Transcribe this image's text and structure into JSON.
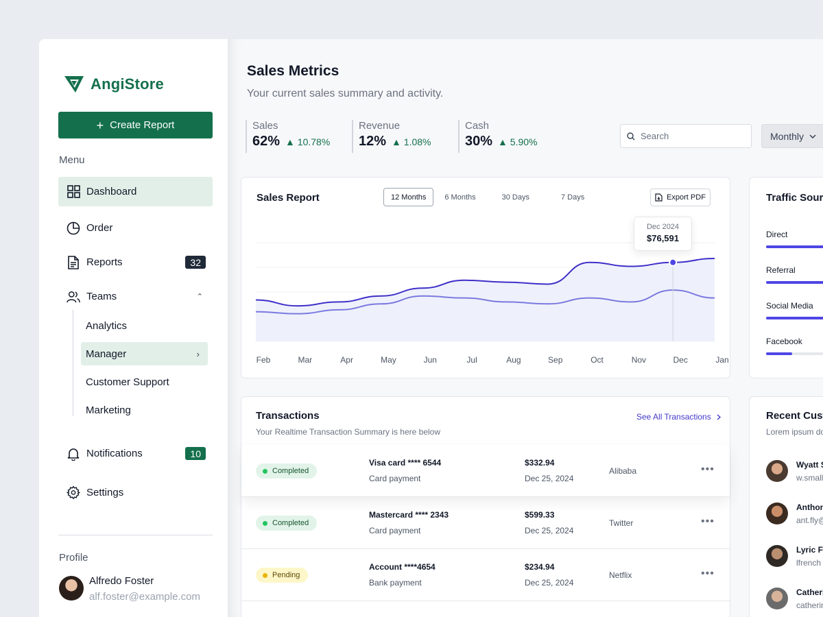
{
  "brand": {
    "name": "AngiStore",
    "color": "#14704c"
  },
  "sidebar": {
    "create_button": "Create Report",
    "menu_label": "Menu",
    "items": [
      {
        "label": "Dashboard",
        "icon": "grid-icon"
      },
      {
        "label": "Order",
        "icon": "pie-chart-icon"
      },
      {
        "label": "Reports",
        "icon": "document-icon",
        "badge": "32"
      },
      {
        "label": "Teams",
        "icon": "users-icon"
      },
      {
        "label": "Notifications",
        "icon": "bell-icon",
        "badge": "10"
      },
      {
        "label": "Settings",
        "icon": "gear-icon"
      }
    ],
    "teams_sub": [
      "Analytics",
      "Manager",
      "Customer Support",
      "Marketing"
    ],
    "profile_label": "Profile",
    "profile": {
      "name": "Alfredo Foster",
      "email": "alf.foster@example.com"
    }
  },
  "header": {
    "title": "Sales Metrics",
    "subtitle": "Your current sales summary and activity."
  },
  "metrics": [
    {
      "label": "Sales",
      "value": "62%",
      "change": "10.78%"
    },
    {
      "label": "Revenue",
      "value": "12%",
      "change": "1.08%"
    },
    {
      "label": "Cash",
      "value": "30%",
      "change": "5.90%"
    }
  ],
  "search": {
    "placeholder": "Search"
  },
  "period_select": {
    "value": "Monthly"
  },
  "sales_report": {
    "title": "Sales Report",
    "tabs": [
      "12 Months",
      "6 Months",
      "30 Days",
      "7 Days"
    ],
    "active_tab": "12 Months",
    "export_label": "Export PDF",
    "tooltip": {
      "date": "Dec 2024",
      "value": "$76,591"
    }
  },
  "chart_data": {
    "type": "line",
    "categories": [
      "Feb",
      "Mar",
      "Apr",
      "May",
      "Jun",
      "Jul",
      "Aug",
      "Sep",
      "Oct",
      "Nov",
      "Dec",
      "Jan"
    ],
    "series": [
      {
        "values": [
          42,
          36,
          40,
          46,
          54,
          62,
          60,
          58,
          80,
          76,
          80,
          84
        ]
      },
      {
        "values": [
          30,
          28,
          32,
          38,
          46,
          44,
          40,
          38,
          44,
          40,
          52,
          44
        ]
      }
    ],
    "highlight": {
      "category": "Dec",
      "value": 76591
    },
    "colors": {
      "primary": "#3f2fc9",
      "secondary": "#7b79e0",
      "area": "#eef1fb"
    }
  },
  "traffic": {
    "title": "Traffic Source",
    "items": [
      {
        "label": "Direct",
        "fraction": 1.0
      },
      {
        "label": "Referral",
        "fraction": 1.0
      },
      {
        "label": "Social Media",
        "fraction": 1.0
      },
      {
        "label": "Facebook",
        "fraction": 0.42
      }
    ]
  },
  "transactions": {
    "title": "Transactions",
    "subtitle": "Your Realtime Transaction Summary is here below",
    "see_all": "See All Transactions",
    "rows": [
      {
        "status": "Completed",
        "method": "Visa card  **** 6544",
        "type": "Card payment",
        "amount": "$332.94",
        "date": "Dec 25, 2024",
        "merchant": "Alibaba"
      },
      {
        "status": "Completed",
        "method": "Mastercard  **** 2343",
        "type": "Card payment",
        "amount": "$599.33",
        "date": "Dec 25, 2024",
        "merchant": "Twitter"
      },
      {
        "status": "Pending",
        "method": "Account  ****4654",
        "type": "Bank payment",
        "amount": "$234.94",
        "date": "Dec 25, 2024",
        "merchant": "Netflix"
      }
    ]
  },
  "recent_customers": {
    "title": "Recent Customers",
    "subtitle": "Lorem ipsum dolor",
    "items": [
      {
        "name": "Wyatt S",
        "email": "w.small"
      },
      {
        "name": "Anthony",
        "email": "ant.fly@"
      },
      {
        "name": "Lyric Fr",
        "email": "lfrench"
      },
      {
        "name": "Catherine",
        "email": "catherin"
      }
    ]
  }
}
